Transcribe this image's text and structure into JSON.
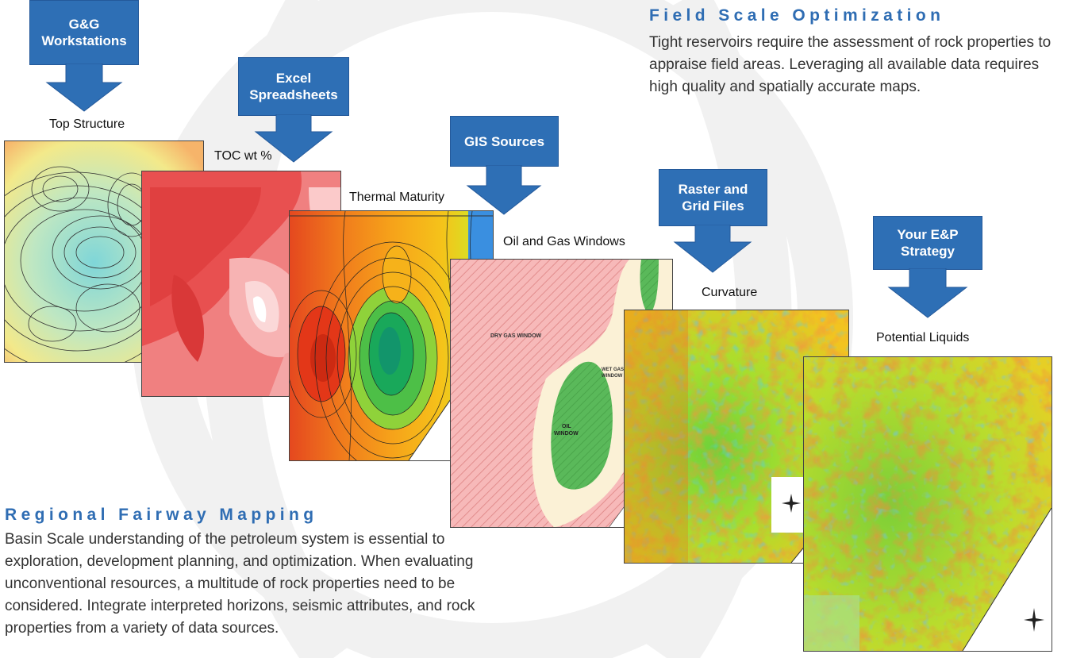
{
  "arrows": {
    "gg": "G&G Workstations",
    "excel": "Excel Spreadsheets",
    "gis": "GIS Sources",
    "raster": "Raster and Grid Files",
    "strategy": "Your E&P Strategy"
  },
  "maps": {
    "top_structure": {
      "label": "Top Structure"
    },
    "toc": {
      "label": "TOC wt %"
    },
    "thermal": {
      "label": "Thermal Maturity"
    },
    "windows": {
      "label": "Oil and Gas Windows",
      "dry_gas": "DRY GAS WINDOW",
      "wet_gas_1": "WET GAS",
      "wet_gas_2": "WINDOW",
      "oil_1": "OIL",
      "oil_2": "WINDOW"
    },
    "curvature": {
      "label": "Curvature"
    },
    "liquids": {
      "label": "Potential Liquids"
    }
  },
  "field": {
    "title": "Field Scale Optimization",
    "body": "Tight reservoirs require the assessment of rock properties to appraise field areas. Leveraging all available data requires high quality and spatially accurate maps."
  },
  "regional": {
    "title": "Regional Fairway Mapping",
    "body": "Basin Scale understanding of the petroleum system is essential to exploration, development planning, and optimization. When evaluating unconventional resources, a multitude of rock properties need to be considered. Integrate interpreted horizons,  seismic attributes, and rock properties  from a variety of data sources."
  },
  "colors": {
    "accent": "#2e6fb5",
    "title": "#2f6db3"
  }
}
